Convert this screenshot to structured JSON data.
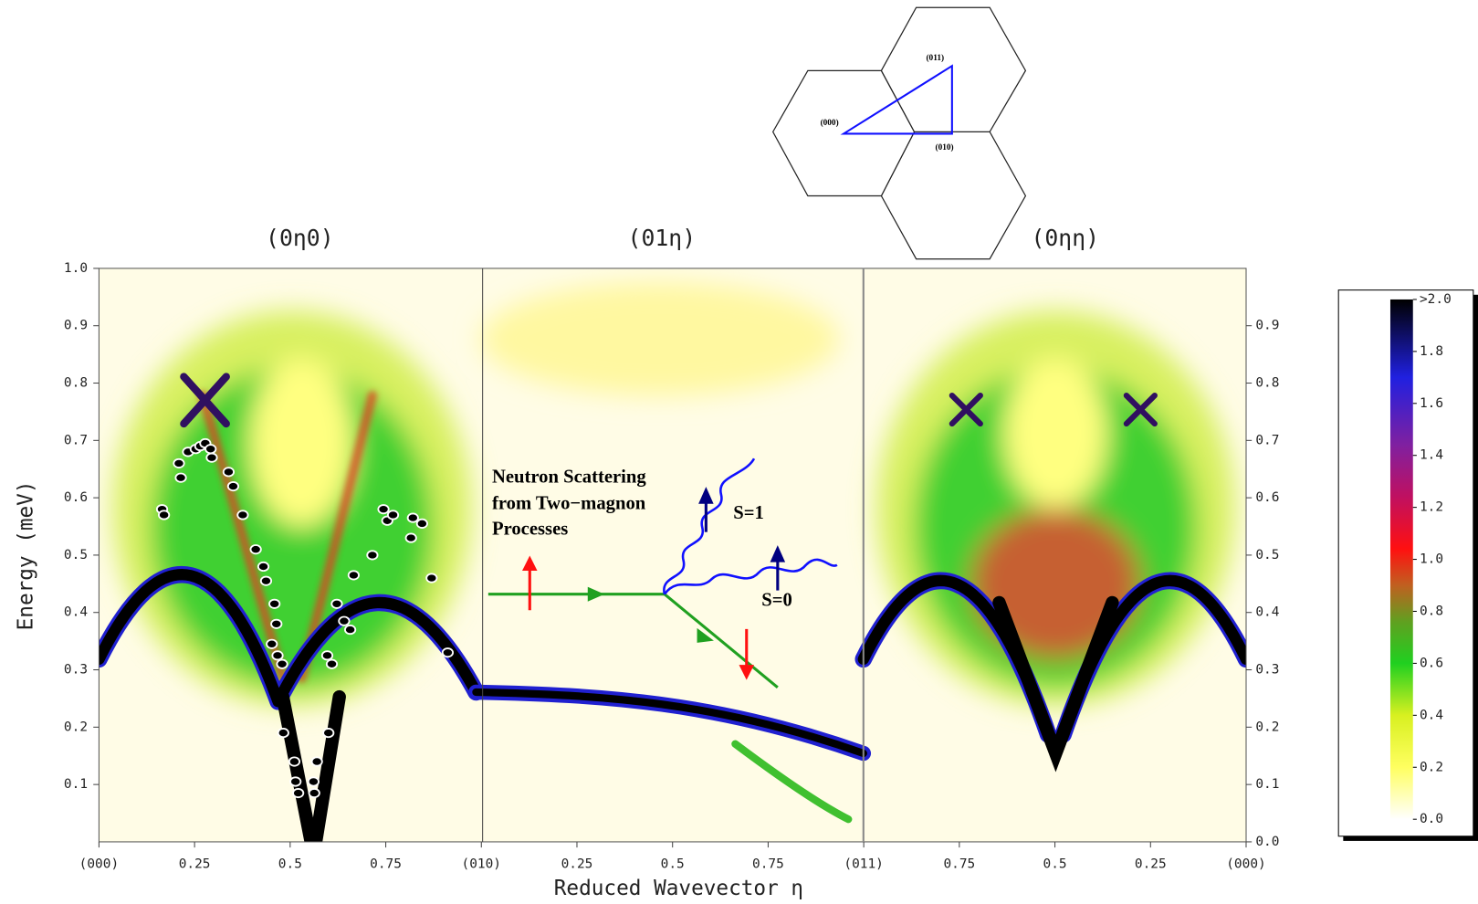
{
  "chart_data": {
    "type": "scatter",
    "panel_titles": [
      "(0η0)",
      "(01η)",
      "(0ηη)"
    ],
    "xlabel": "Reduced Wavevector η",
    "ylabel": "Energy (meV)",
    "xlim": [
      0,
      3
    ],
    "xticks": [
      {
        "value": 0,
        "label": "(000)"
      },
      0.25,
      0.5,
      0.75,
      {
        "value": 1,
        "label": "(010)"
      },
      {
        "value": 1.25,
        "label": "0.25"
      },
      {
        "value": 1.5,
        "label": "0.5"
      },
      {
        "value": 1.75,
        "label": "0.75"
      },
      {
        "value": 2,
        "label": "(011)"
      },
      {
        "value": 2.25,
        "label": "0.75"
      },
      {
        "value": 2.5,
        "label": "0.5"
      },
      {
        "value": 2.75,
        "label": "0.25"
      },
      {
        "value": 3,
        "label": "(000)"
      }
    ],
    "ylim": [
      0,
      1
    ],
    "yticks": [
      0.1,
      0.2,
      0.3,
      0.4,
      0.5,
      0.6,
      0.7,
      0.8,
      0.9,
      {
        "value": 1,
        "label": "1.0"
      }
    ],
    "y2lim": [
      0,
      1
    ],
    "y2ticks": [
      {
        "value": 0,
        "label": "0.0"
      },
      0.1,
      0.2,
      0.3,
      0.4,
      0.5,
      0.6,
      0.7,
      0.8,
      0.9
    ],
    "series": [
      {
        "color": "#000000",
        "x": [
          0.165,
          0.17,
          0.209,
          0.214,
          0.233,
          0.253,
          0.265,
          0.278,
          0.292,
          0.295,
          0.339,
          0.351,
          0.376,
          0.41,
          0.43,
          0.437,
          0.459,
          0.464,
          0.452,
          0.467,
          0.479,
          0.482,
          0.511,
          0.514,
          0.521,
          0.561,
          0.563,
          0.57,
          0.6,
          0.597,
          0.609,
          0.622,
          0.641,
          0.657,
          0.666,
          0.715,
          0.744,
          0.754,
          0.769,
          0.816,
          0.821,
          0.845,
          0.87,
          0.912
        ],
        "values": [
          0.58,
          0.57,
          0.66,
          0.635,
          0.68,
          0.685,
          0.69,
          0.695,
          0.685,
          0.67,
          0.645,
          0.62,
          0.57,
          0.51,
          0.48,
          0.455,
          0.415,
          0.38,
          0.345,
          0.325,
          0.31,
          0.19,
          0.14,
          0.105,
          0.085,
          0.105,
          0.085,
          0.14,
          0.19,
          0.325,
          0.31,
          0.415,
          0.385,
          0.37,
          0.465,
          0.5,
          0.58,
          0.56,
          0.57,
          0.53,
          0.565,
          0.555,
          0.46,
          0.33
        ]
      }
    ],
    "colorbar": {
      "lim": [
        0,
        2
      ],
      "ticks": [
        {
          "value": 0,
          "label": "0.0"
        },
        0.2,
        0.4,
        0.6,
        0.8,
        {
          "value": 1,
          "label": "1.0"
        },
        1.2,
        1.4,
        1.6,
        1.8,
        {
          "value": 2,
          "label": ">2.0"
        }
      ]
    },
    "annotation": [
      "Neutron Scattering",
      "from Two−magnon",
      "Processes"
    ],
    "spin_labels": [
      "S=1",
      "S=0"
    ],
    "inset_labels": [
      "(000)",
      "(011)",
      "(010)"
    ]
  }
}
